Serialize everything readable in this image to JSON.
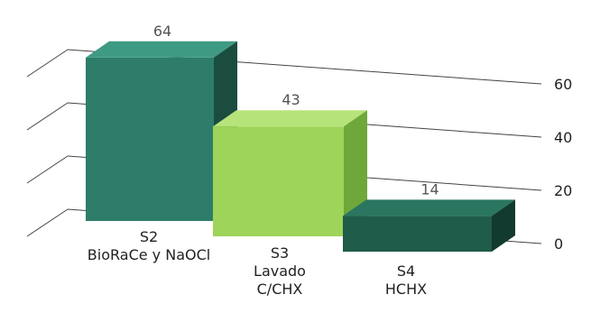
{
  "chart_data": {
    "type": "bar",
    "categories": [
      [
        "S2",
        "BioRaCe y NaOCl"
      ],
      [
        "S3",
        "Lavado",
        "C/CHX"
      ],
      [
        "S4",
        "HCHX"
      ]
    ],
    "values": [
      64,
      43,
      14
    ],
    "data_labels": [
      "64",
      "43",
      "14"
    ],
    "y_ticks": [
      "0",
      "20",
      "40",
      "60"
    ],
    "ylim": [
      0,
      60
    ],
    "grid": true,
    "style": "3d",
    "colors": {
      "bars": [
        "#2e7d6a",
        "#9ed45a",
        "#1f5c4a"
      ],
      "bars_side": [
        "#1a4d40",
        "#6fa83a",
        "#123a2e"
      ],
      "bars_top": [
        "#3f9a83",
        "#b7e47a",
        "#2b7660"
      ],
      "axis": "#444444",
      "labels": "#222222",
      "value_labels": "#555555"
    }
  }
}
